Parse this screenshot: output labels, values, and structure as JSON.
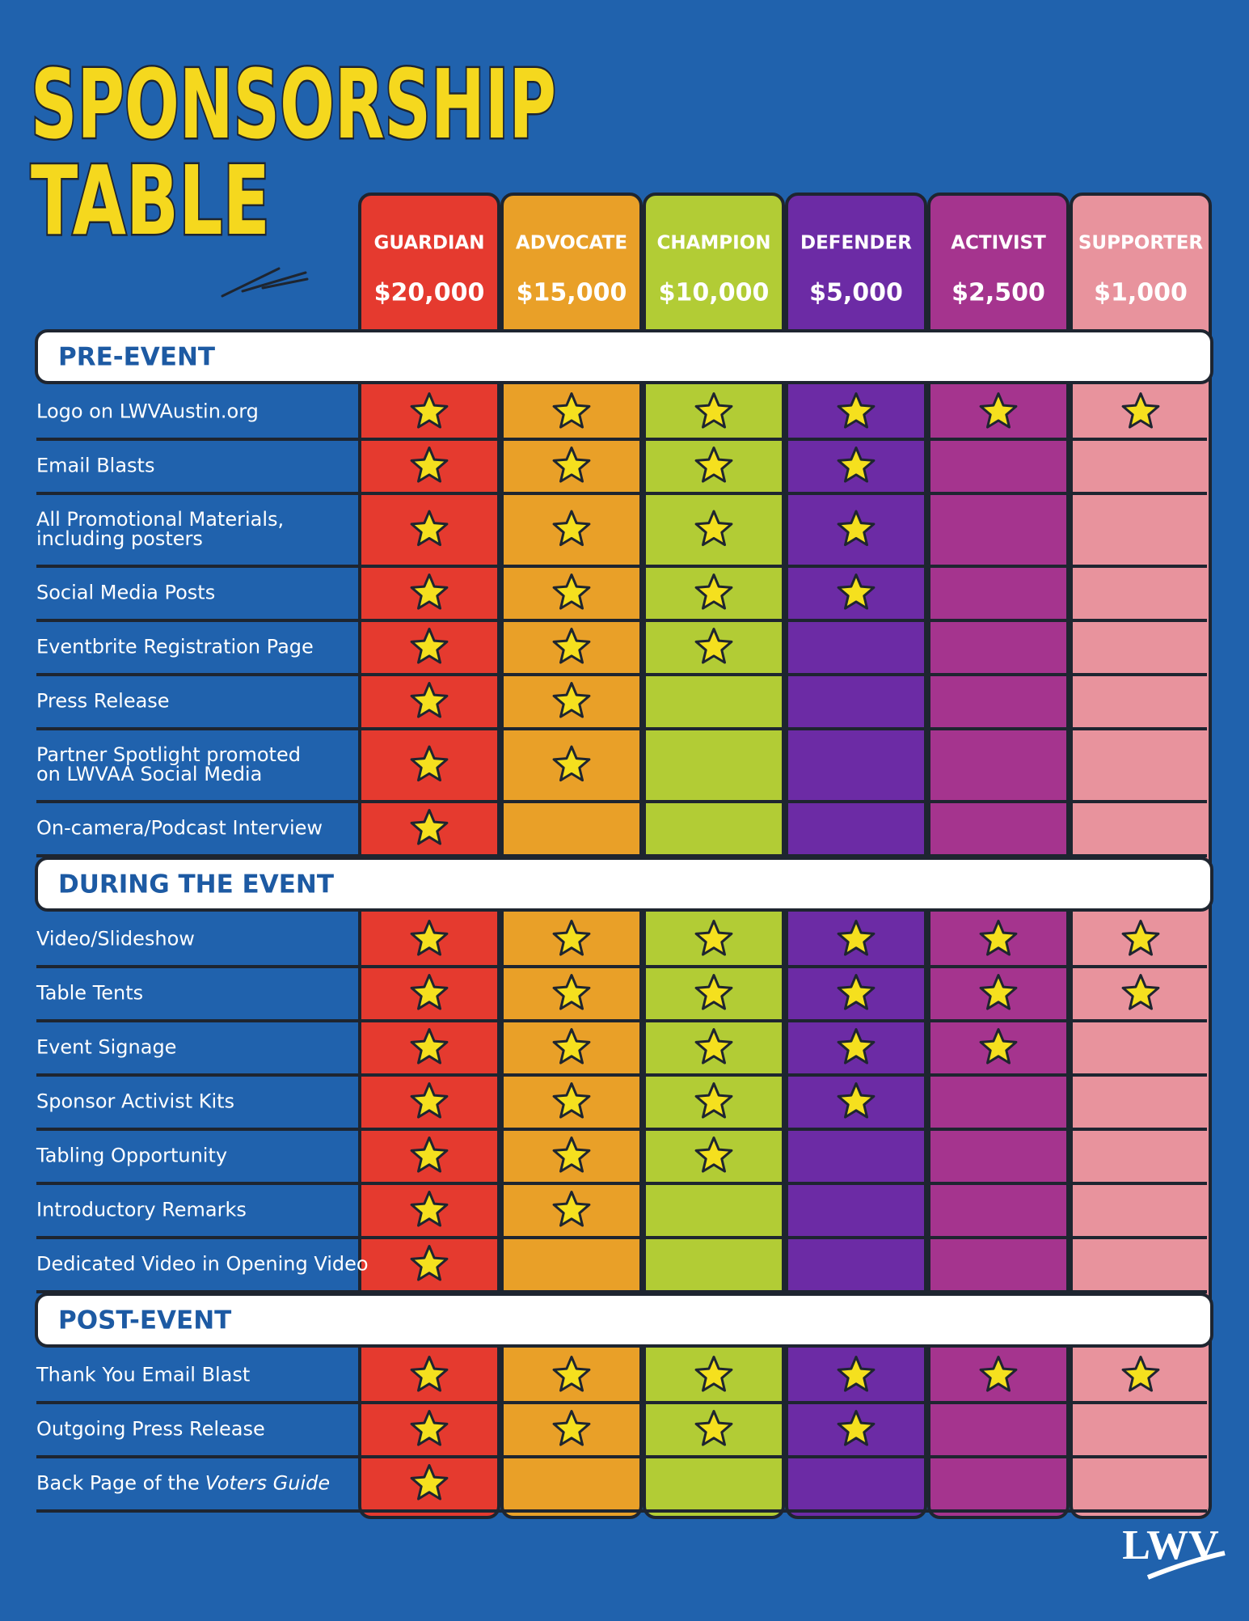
{
  "title": [
    "SPONSORSHIP",
    "TABLE"
  ],
  "tiers": [
    {
      "name": "GUARDIAN",
      "price": "$20,000",
      "color": "#e53a2f"
    },
    {
      "name": "ADVOCATE",
      "price": "$15,000",
      "color": "#e9a028"
    },
    {
      "name": "CHAMPION",
      "price": "$10,000",
      "color": "#b2cc35"
    },
    {
      "name": "DEFENDER",
      "price": "$5,000",
      "color": "#6c2ba5"
    },
    {
      "name": "ACTIVIST",
      "price": "$2,500",
      "color": "#a5348e"
    },
    {
      "name": "SUPPORTER",
      "price": "$1,000",
      "color": "#e8939d"
    }
  ],
  "sections": [
    {
      "title": "PRE-EVENT",
      "rows": [
        {
          "label": [
            "Logo on LWVAustin.org"
          ],
          "stars": 6
        },
        {
          "label": [
            "Email Blasts"
          ],
          "stars": 4
        },
        {
          "label": [
            "All Promotional Materials,",
            "including posters"
          ],
          "stars": 4
        },
        {
          "label": [
            "Social Media Posts"
          ],
          "stars": 4
        },
        {
          "label": [
            "Eventbrite Registration Page"
          ],
          "stars": 3
        },
        {
          "label": [
            "Press Release"
          ],
          "stars": 2
        },
        {
          "label": [
            "Partner Spotlight promoted",
            "on LWVAA Social Media"
          ],
          "stars": 2
        },
        {
          "label": [
            "On-camera/Podcast Interview"
          ],
          "stars": 1
        }
      ]
    },
    {
      "title": "DURING THE EVENT",
      "rows": [
        {
          "label": [
            "Video/Slideshow"
          ],
          "stars": 6
        },
        {
          "label": [
            "Table Tents"
          ],
          "stars": 6
        },
        {
          "label": [
            "Event Signage"
          ],
          "stars": 5
        },
        {
          "label": [
            "Sponsor Activist Kits"
          ],
          "stars": 4
        },
        {
          "label": [
            "Tabling Opportunity"
          ],
          "stars": 3
        },
        {
          "label": [
            "Introductory Remarks"
          ],
          "stars": 2
        },
        {
          "label": [
            "Dedicated Video in Opening Video"
          ],
          "stars": 1
        }
      ]
    },
    {
      "title": "POST-EVENT",
      "rows": [
        {
          "label": [
            "Thank You Email Blast"
          ],
          "stars": 6
        },
        {
          "label": [
            "Outgoing Press Release"
          ],
          "stars": 4
        },
        {
          "label": [
            "Back Page of the"
          ],
          "label_italic": "Voters Guide",
          "stars": 1
        }
      ]
    }
  ],
  "logo": "LWV"
}
